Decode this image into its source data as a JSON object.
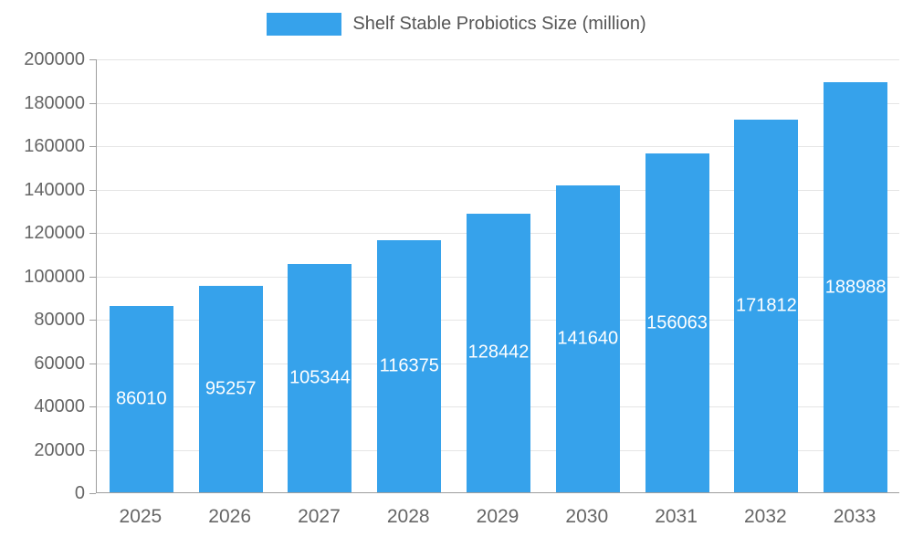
{
  "chart_data": {
    "type": "bar",
    "title": "Shelf Stable Probiotics Size (million)",
    "categories": [
      "2025",
      "2026",
      "2027",
      "2028",
      "2029",
      "2030",
      "2031",
      "2032",
      "2033"
    ],
    "values": [
      86010,
      95257,
      105344,
      116375,
      128442,
      141640,
      156063,
      171812,
      188988
    ],
    "xlabel": "",
    "ylabel": "",
    "ylim": [
      0,
      200000
    ],
    "ytick_step": 20000,
    "yticks": [
      0,
      20000,
      40000,
      60000,
      80000,
      100000,
      120000,
      140000,
      160000,
      180000,
      200000
    ],
    "grid": true,
    "legend_position": "top",
    "bar_color": "#36A2EB",
    "value_label_color": "#ffffff",
    "axis_text_color": "#666666",
    "gridline_color": "#e5e5e5",
    "axis_line_color": "#9e9e9e"
  }
}
